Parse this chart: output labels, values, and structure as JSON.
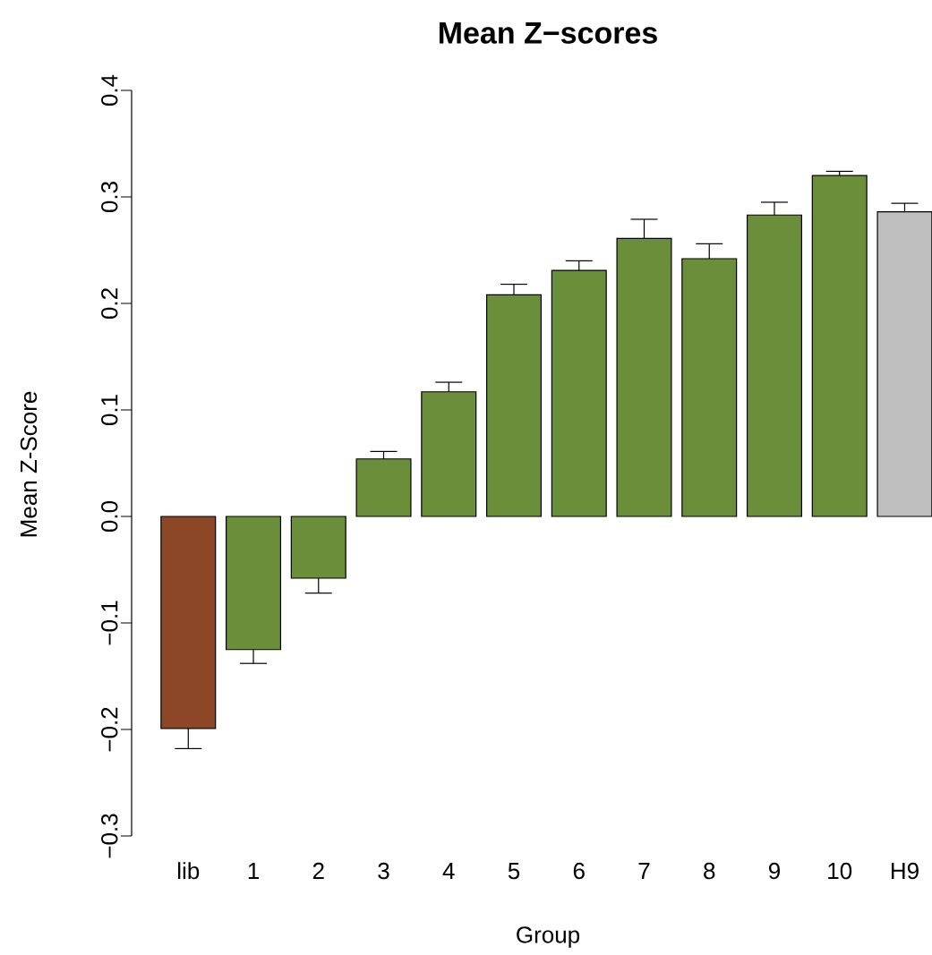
{
  "chart_data": {
    "type": "bar",
    "title": "Mean Z−scores",
    "xlabel": "Group",
    "ylabel": "Mean Z-Score",
    "categories": [
      "lib",
      "1",
      "2",
      "3",
      "4",
      "5",
      "6",
      "7",
      "8",
      "9",
      "10",
      "H9"
    ],
    "values": [
      -0.199,
      -0.125,
      -0.058,
      0.054,
      0.117,
      0.208,
      0.231,
      0.261,
      0.242,
      0.283,
      0.32,
      0.286
    ],
    "errors": [
      [
        -0.218,
        -0.199
      ],
      [
        -0.138,
        -0.125
      ],
      [
        -0.072,
        -0.058
      ],
      [
        0.054,
        0.061
      ],
      [
        0.117,
        0.126
      ],
      [
        0.208,
        0.218
      ],
      [
        0.231,
        0.24
      ],
      [
        0.261,
        0.279
      ],
      [
        0.242,
        0.256
      ],
      [
        0.283,
        0.295
      ],
      [
        0.32,
        0.324
      ],
      [
        0.286,
        0.294
      ]
    ],
    "colors": [
      "#8b4726",
      "#6b8e3a",
      "#6b8e3a",
      "#6b8e3a",
      "#6b8e3a",
      "#6b8e3a",
      "#6b8e3a",
      "#6b8e3a",
      "#6b8e3a",
      "#6b8e3a",
      "#6b8e3a",
      "#bebebe"
    ],
    "ylim": [
      -0.3,
      0.4
    ],
    "yticks": [
      {
        "value": -0.3,
        "label": "−0.3"
      },
      {
        "value": -0.2,
        "label": "−0.2"
      },
      {
        "value": -0.1,
        "label": "−0.1"
      },
      {
        "value": 0,
        "label": "0.0"
      },
      0.1,
      0.2,
      0.3,
      0.4
    ],
    "grid": false
  }
}
